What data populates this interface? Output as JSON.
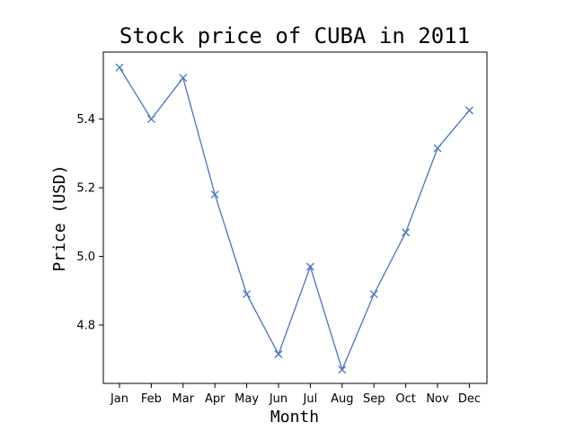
{
  "chart_data": {
    "type": "line",
    "title": "Stock price of CUBA in 2011",
    "xlabel": "Month",
    "ylabel": "Price (USD)",
    "categories": [
      "Jan",
      "Feb",
      "Mar",
      "Apr",
      "May",
      "Jun",
      "Jul",
      "Aug",
      "Sep",
      "Oct",
      "Nov",
      "Dec"
    ],
    "series": [
      {
        "values": [
          5.55,
          5.4,
          5.52,
          5.18,
          4.89,
          4.715,
          4.97,
          4.67,
          4.89,
          5.07,
          5.315,
          5.425
        ]
      }
    ],
    "ylim": [
      4.63,
      5.595
    ],
    "yticks": [
      4.8,
      5.0,
      5.2,
      5.4
    ],
    "ytick_labels": [
      "4.8",
      "5.0",
      "5.2",
      "5.4"
    ],
    "marker": "x",
    "line_color": "#4a72c4",
    "grid": false,
    "legend": "none"
  }
}
